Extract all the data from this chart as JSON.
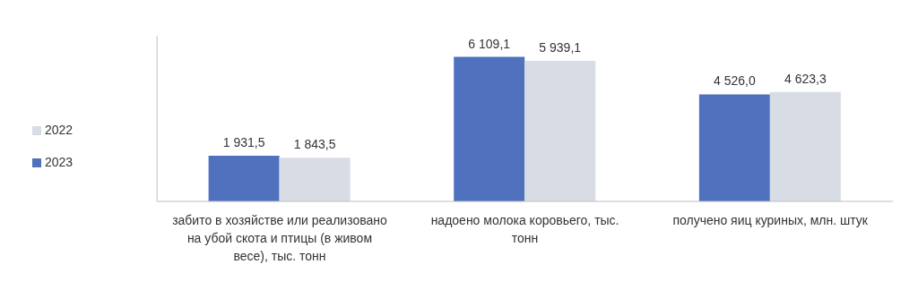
{
  "chart_data": {
    "type": "bar",
    "categories": [
      "забито в хозяйстве или реализовано на убой скота и птицы (в живом весе), тыс. тонн",
      "надоено молока коровьего, тыс. тонн",
      "получено яиц куриных, млн. штук"
    ],
    "series": [
      {
        "name": "2023",
        "color": "#4f71be",
        "values": [
          1931.5,
          6109.1,
          4526.0
        ],
        "value_labels": [
          "1 931,5",
          "6 109,1",
          "4 526,0"
        ]
      },
      {
        "name": "2022",
        "color": "#d8dce5",
        "values": [
          1843.5,
          5939.1,
          4623.3
        ],
        "value_labels": [
          "1 843,5",
          "5 939,1",
          "4 623,3"
        ]
      }
    ],
    "ylim": [
      0,
      7000
    ],
    "tick_labels": "x",
    "grid": false,
    "legend": "left"
  }
}
